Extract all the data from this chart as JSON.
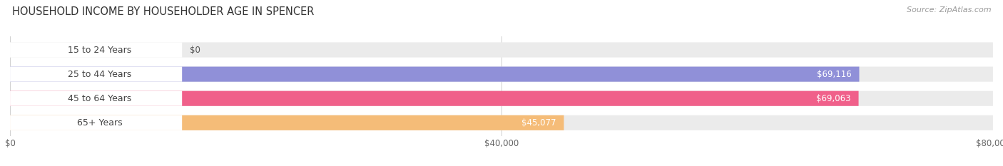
{
  "title": "HOUSEHOLD INCOME BY HOUSEHOLDER AGE IN SPENCER",
  "source": "Source: ZipAtlas.com",
  "categories": [
    "15 to 24 Years",
    "25 to 44 Years",
    "45 to 64 Years",
    "65+ Years"
  ],
  "values": [
    0,
    69116,
    69063,
    45077
  ],
  "bar_colors": [
    "#6dcfcf",
    "#9090d8",
    "#f0608a",
    "#f5bc78"
  ],
  "bar_bg_color": "#ebebeb",
  "max_value": 80000,
  "xticks": [
    0,
    40000,
    80000
  ],
  "xticklabels": [
    "$0",
    "$40,000",
    "$80,000"
  ],
  "title_fontsize": 10.5,
  "source_fontsize": 8,
  "tick_fontsize": 8.5,
  "bar_label_fontsize": 8.5,
  "category_fontsize": 9
}
